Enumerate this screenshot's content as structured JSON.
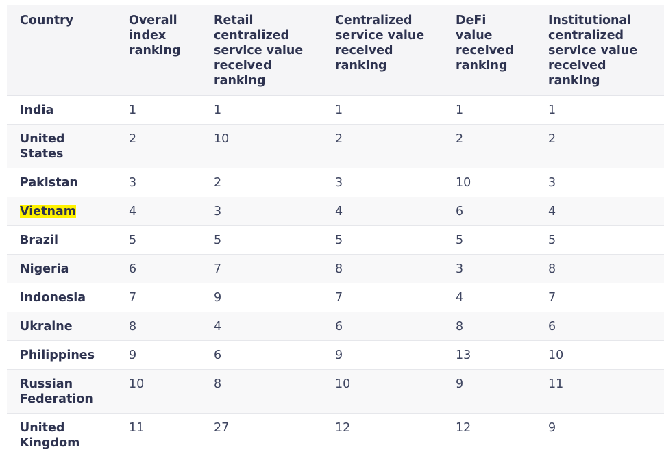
{
  "table": {
    "headers": [
      "Country",
      "Overall index ranking",
      "Retail centralized service value received ranking",
      "Centralized service value received ranking",
      "DeFi value received ranking",
      "Institutional centralized service value received ranking"
    ],
    "header_lines": [
      [
        "Country"
      ],
      [
        "Overall",
        "index",
        "ranking"
      ],
      [
        "Retail",
        "centralized",
        "service value",
        "received",
        "ranking"
      ],
      [
        "Centralized",
        "service value",
        "received",
        "ranking"
      ],
      [
        "DeFi",
        "value",
        "received",
        "ranking"
      ],
      [
        "Institutional",
        "centralized",
        "service value",
        "received",
        "ranking"
      ]
    ],
    "highlight_color": "#fff200",
    "rows": [
      {
        "country": "India",
        "cells": [
          "1",
          "1",
          "1",
          "1",
          "1"
        ]
      },
      {
        "country": "United States",
        "cells": [
          "2",
          "10",
          "2",
          "2",
          "2"
        ]
      },
      {
        "country": "Pakistan",
        "cells": [
          "3",
          "2",
          "3",
          "10",
          "3"
        ]
      },
      {
        "country": "Vietnam",
        "cells": [
          "4",
          "3",
          "4",
          "6",
          "4"
        ],
        "highlighted": true
      },
      {
        "country": "Brazil",
        "cells": [
          "5",
          "5",
          "5",
          "5",
          "5"
        ]
      },
      {
        "country": "Nigeria",
        "cells": [
          "6",
          "7",
          "8",
          "3",
          "8"
        ]
      },
      {
        "country": "Indonesia",
        "cells": [
          "7",
          "9",
          "7",
          "4",
          "7"
        ]
      },
      {
        "country": "Ukraine",
        "cells": [
          "8",
          "4",
          "6",
          "8",
          "6"
        ]
      },
      {
        "country": "Philippines",
        "cells": [
          "9",
          "6",
          "9",
          "13",
          "10"
        ]
      },
      {
        "country": "Russian Federation",
        "cells": [
          "10",
          "8",
          "10",
          "9",
          "11"
        ]
      },
      {
        "country": "United Kingdom",
        "cells": [
          "11",
          "27",
          "12",
          "12",
          "9"
        ]
      }
    ]
  }
}
